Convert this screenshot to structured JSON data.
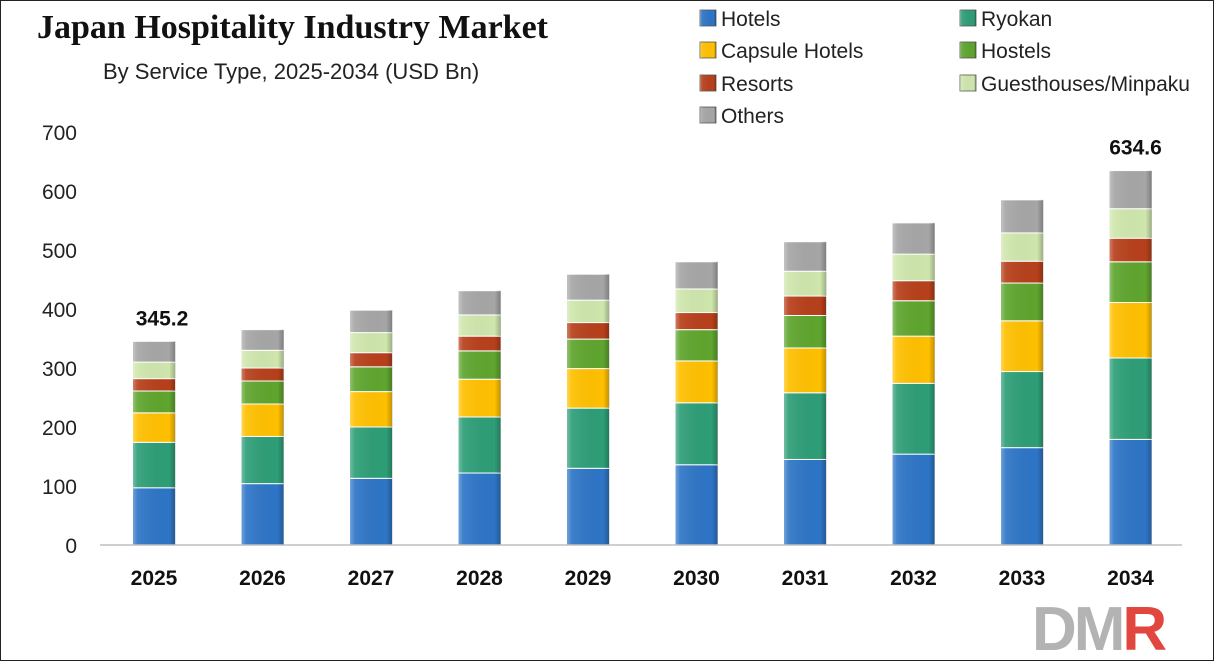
{
  "title": "Japan Hospitality Industry Market",
  "subtitle": "By Service Type, 2025-2034 (USD Bn)",
  "logo_text": "DMR",
  "colors": {
    "Hotels": "#2e75c6",
    "Ryokan": "#2e9e77",
    "Capsule Hotels": "#ffc000",
    "Hostels": "#5fa52e",
    "Resorts": "#b7401b",
    "Guesthouses/Minpaku": "#cfe6ad",
    "Others": "#a6a6a6",
    "logo_dm": "#b3b3b3",
    "logo_r": "#e1473e"
  },
  "chart_data": {
    "type": "bar",
    "stacked": true,
    "categories": [
      "2025",
      "2026",
      "2027",
      "2028",
      "2029",
      "2030",
      "2031",
      "2032",
      "2033",
      "2034"
    ],
    "series": [
      {
        "name": "Hotels",
        "values": [
          97,
          104,
          113,
          122,
          130,
          136,
          145,
          154,
          165,
          179
        ]
      },
      {
        "name": "Ryokan",
        "values": [
          77,
          80,
          87,
          95,
          102,
          105,
          113,
          120,
          129,
          138
        ]
      },
      {
        "name": "Capsule Hotels",
        "values": [
          50,
          55,
          60,
          64,
          67,
          71,
          76,
          80,
          86,
          94
        ]
      },
      {
        "name": "Hostels",
        "values": [
          37,
          39,
          42,
          48,
          50,
          53,
          55,
          60,
          64,
          69
        ]
      },
      {
        "name": "Resorts",
        "values": [
          21,
          22,
          24,
          25,
          28,
          29,
          33,
          34,
          37,
          40
        ]
      },
      {
        "name": "Guesthouses/Minpaku",
        "values": [
          28,
          30,
          34,
          36,
          38,
          40,
          42,
          45,
          48,
          50
        ]
      },
      {
        "name": "Others",
        "values": [
          35.2,
          35,
          38,
          41,
          44,
          46,
          50,
          53,
          56,
          64.6
        ]
      }
    ],
    "data_labels": [
      {
        "category": "2025",
        "text": "345.2"
      },
      {
        "category": "2034",
        "text": "634.6"
      }
    ],
    "y_ticks": [
      0,
      100,
      200,
      300,
      400,
      500,
      600,
      700
    ],
    "ylim": [
      0,
      700
    ],
    "grid": false,
    "legend_position": "top-right"
  }
}
